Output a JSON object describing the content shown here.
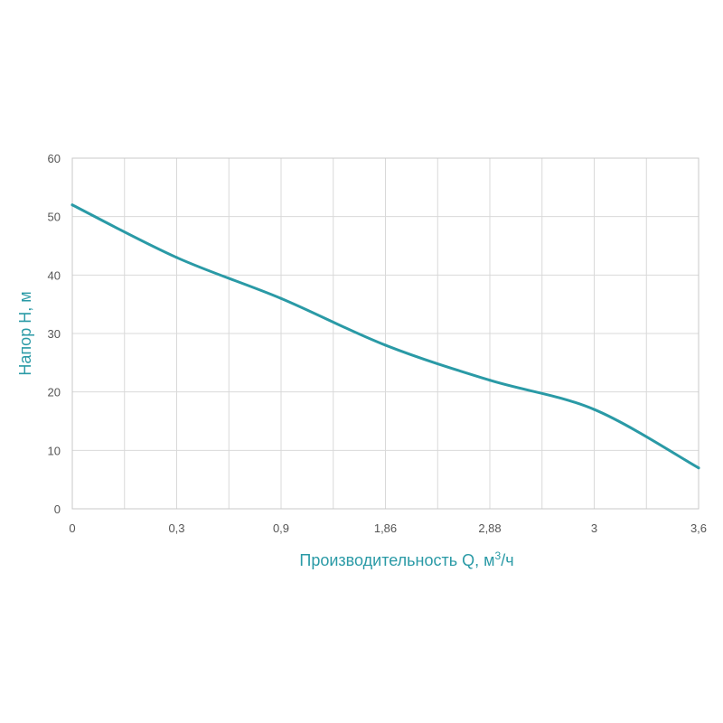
{
  "chart_data": {
    "type": "line",
    "xlabel": "Производительность Q, м",
    "xlabel_sup": "3",
    "xlabel_tail": "/ч",
    "ylabel": "Напор H, м",
    "categories": [
      "0",
      "0,3",
      "0,9",
      "1,86",
      "2,88",
      "3",
      "3,6"
    ],
    "ylim": [
      0,
      60
    ],
    "yticks": [
      "0",
      "10",
      "20",
      "30",
      "40",
      "50",
      "60"
    ],
    "grid": true,
    "colors": {
      "line": "#2a9aa6",
      "grid": "#d9d9d9",
      "frame": "#c8c8c8"
    },
    "series": [
      {
        "values": [
          52,
          43,
          36,
          28,
          22,
          17,
          7
        ]
      }
    ]
  }
}
